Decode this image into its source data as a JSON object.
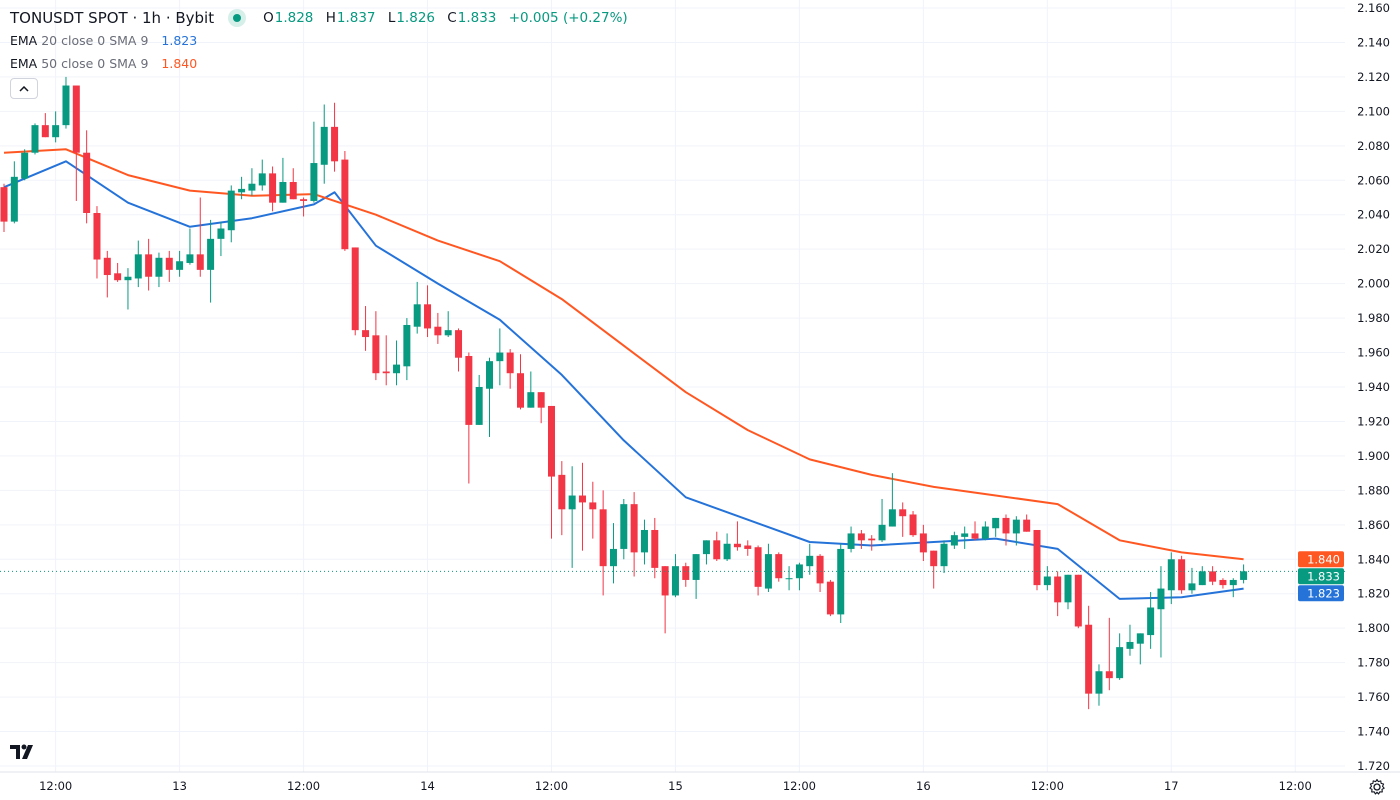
{
  "header": {
    "title": "TONUSDT SPOT · 1h · Bybit",
    "status": "market-open",
    "open_label": "O",
    "open": "1.828",
    "high_label": "H",
    "high": "1.837",
    "low_label": "L",
    "low": "1.826",
    "close_label": "C",
    "close": "1.833",
    "change": "+0.005 (+0.27%)"
  },
  "indicators": [
    {
      "name": "EMA",
      "params": "20 close 0 SMA 9",
      "value": "1.823",
      "color": "#2573d9"
    },
    {
      "name": "EMA",
      "params": "50 close 0 SMA 9",
      "value": "1.840",
      "color": "#ff5722"
    }
  ],
  "icons": {
    "collapse": "chevron-up-icon",
    "logo": "tradingview-logo",
    "settings": "gear-icon"
  },
  "colors": {
    "up": "#089981",
    "down": "#f23645",
    "grid": "#f0f3fa"
  },
  "chart_data": {
    "type": "candlestick",
    "symbol": "TONUSDT SPOT",
    "interval": "1h",
    "start": "12 07:00",
    "ohlc": [
      [
        2.056,
        2.058,
        2.03,
        2.036
      ],
      [
        2.036,
        2.071,
        2.035,
        2.062
      ],
      [
        2.061,
        2.078,
        2.06,
        2.076
      ],
      [
        2.076,
        2.093,
        2.075,
        2.092
      ],
      [
        2.092,
        2.099,
        2.085,
        2.085
      ],
      [
        2.085,
        2.1,
        2.082,
        2.092
      ],
      [
        2.092,
        2.12,
        2.09,
        2.115
      ],
      [
        2.115,
        2.115,
        2.048,
        2.076
      ],
      [
        2.076,
        2.089,
        2.035,
        2.041
      ],
      [
        2.041,
        2.045,
        2.003,
        2.014
      ],
      [
        2.015,
        2.019,
        1.992,
        2.005
      ],
      [
        2.006,
        2.012,
        2.001,
        2.002
      ],
      [
        2.002,
        2.009,
        1.985,
        2.004
      ],
      [
        2.003,
        2.025,
        1.998,
        2.017
      ],
      [
        2.017,
        2.026,
        1.996,
        2.004
      ],
      [
        2.004,
        2.018,
        1.998,
        2.015
      ],
      [
        2.015,
        2.019,
        2.001,
        2.008
      ],
      [
        2.008,
        2.019,
        2.004,
        2.013
      ],
      [
        2.012,
        2.032,
        2.011,
        2.017
      ],
      [
        2.017,
        2.05,
        2.004,
        2.008
      ],
      [
        2.008,
        2.037,
        1.989,
        2.026
      ],
      [
        2.026,
        2.036,
        2.016,
        2.032
      ],
      [
        2.031,
        2.057,
        2.024,
        2.054
      ],
      [
        2.053,
        2.062,
        2.049,
        2.055
      ],
      [
        2.054,
        2.067,
        2.051,
        2.058
      ],
      [
        2.057,
        2.072,
        2.054,
        2.064
      ],
      [
        2.064,
        2.068,
        2.042,
        2.047
      ],
      [
        2.047,
        2.073,
        2.047,
        2.059
      ],
      [
        2.059,
        2.067,
        2.049,
        2.049
      ],
      [
        2.049,
        2.05,
        2.039,
        2.048
      ],
      [
        2.048,
        2.094,
        2.047,
        2.07
      ],
      [
        2.069,
        2.104,
        2.058,
        2.091
      ],
      [
        2.091,
        2.105,
        2.065,
        2.071
      ],
      [
        2.072,
        2.077,
        2.019,
        2.02
      ],
      [
        2.021,
        2.021,
        1.97,
        1.973
      ],
      [
        1.973,
        1.987,
        1.961,
        1.969
      ],
      [
        1.97,
        1.984,
        1.944,
        1.948
      ],
      [
        1.949,
        1.97,
        1.941,
        1.948
      ],
      [
        1.948,
        1.967,
        1.941,
        1.953
      ],
      [
        1.952,
        1.98,
        1.944,
        1.976
      ],
      [
        1.975,
        2.001,
        1.971,
        1.988
      ],
      [
        1.988,
        1.999,
        1.969,
        1.974
      ],
      [
        1.975,
        1.983,
        1.965,
        1.97
      ],
      [
        1.97,
        1.984,
        1.969,
        1.973
      ],
      [
        1.973,
        1.974,
        1.949,
        1.957
      ],
      [
        1.958,
        1.96,
        1.884,
        1.918
      ],
      [
        1.918,
        1.947,
        1.918,
        1.94
      ],
      [
        1.939,
        1.957,
        1.911,
        1.955
      ],
      [
        1.955,
        1.974,
        1.941,
        1.96
      ],
      [
        1.96,
        1.962,
        1.939,
        1.948
      ],
      [
        1.948,
        1.959,
        1.927,
        1.928
      ],
      [
        1.928,
        1.949,
        1.928,
        1.937
      ],
      [
        1.937,
        1.937,
        1.919,
        1.928
      ],
      [
        1.929,
        1.929,
        1.852,
        1.888
      ],
      [
        1.889,
        1.897,
        1.854,
        1.869
      ],
      [
        1.869,
        1.894,
        1.835,
        1.877
      ],
      [
        1.877,
        1.896,
        1.845,
        1.873
      ],
      [
        1.873,
        1.885,
        1.852,
        1.869
      ],
      [
        1.869,
        1.88,
        1.819,
        1.836
      ],
      [
        1.836,
        1.861,
        1.826,
        1.846
      ],
      [
        1.846,
        1.875,
        1.84,
        1.872
      ],
      [
        1.872,
        1.879,
        1.83,
        1.844
      ],
      [
        1.844,
        1.863,
        1.837,
        1.857
      ],
      [
        1.857,
        1.864,
        1.829,
        1.835
      ],
      [
        1.836,
        1.836,
        1.797,
        1.819
      ],
      [
        1.819,
        1.843,
        1.818,
        1.836
      ],
      [
        1.836,
        1.838,
        1.824,
        1.828
      ],
      [
        1.828,
        1.843,
        1.817,
        1.843
      ],
      [
        1.843,
        1.851,
        1.837,
        1.851
      ],
      [
        1.851,
        1.856,
        1.839,
        1.84
      ],
      [
        1.84,
        1.855,
        1.839,
        1.849
      ],
      [
        1.849,
        1.862,
        1.845,
        1.847
      ],
      [
        1.848,
        1.851,
        1.842,
        1.846
      ],
      [
        1.847,
        1.848,
        1.819,
        1.824
      ],
      [
        1.823,
        1.849,
        1.821,
        1.843
      ],
      [
        1.843,
        1.844,
        1.827,
        1.829
      ],
      [
        1.829,
        1.836,
        1.822,
        1.829
      ],
      [
        1.829,
        1.838,
        1.822,
        1.837
      ],
      [
        1.836,
        1.849,
        1.831,
        1.842
      ],
      [
        1.842,
        1.843,
        1.821,
        1.826
      ],
      [
        1.827,
        1.828,
        1.807,
        1.808
      ],
      [
        1.808,
        1.849,
        1.803,
        1.846
      ],
      [
        1.846,
        1.859,
        1.844,
        1.855
      ],
      [
        1.855,
        1.857,
        1.846,
        1.851
      ],
      [
        1.852,
        1.854,
        1.845,
        1.851
      ],
      [
        1.851,
        1.875,
        1.85,
        1.86
      ],
      [
        1.859,
        1.89,
        1.859,
        1.869
      ],
      [
        1.869,
        1.873,
        1.853,
        1.865
      ],
      [
        1.866,
        1.868,
        1.853,
        1.854
      ],
      [
        1.855,
        1.86,
        1.839,
        1.844
      ],
      [
        1.845,
        1.845,
        1.823,
        1.836
      ],
      [
        1.836,
        1.851,
        1.832,
        1.849
      ],
      [
        1.848,
        1.856,
        1.846,
        1.854
      ],
      [
        1.853,
        1.859,
        1.846,
        1.855
      ],
      [
        1.855,
        1.862,
        1.851,
        1.852
      ],
      [
        1.852,
        1.862,
        1.851,
        1.859
      ],
      [
        1.858,
        1.864,
        1.853,
        1.864
      ],
      [
        1.864,
        1.866,
        1.848,
        1.855
      ],
      [
        1.855,
        1.865,
        1.848,
        1.863
      ],
      [
        1.863,
        1.866,
        1.856,
        1.856
      ],
      [
        1.857,
        1.857,
        1.822,
        1.825
      ],
      [
        1.825,
        1.836,
        1.822,
        1.83
      ],
      [
        1.83,
        1.833,
        1.807,
        1.815
      ],
      [
        1.815,
        1.831,
        1.811,
        1.831
      ],
      [
        1.831,
        1.831,
        1.8,
        1.801
      ],
      [
        1.802,
        1.813,
        1.753,
        1.762
      ],
      [
        1.762,
        1.779,
        1.755,
        1.775
      ],
      [
        1.775,
        1.806,
        1.764,
        1.771
      ],
      [
        1.771,
        1.797,
        1.77,
        1.789
      ],
      [
        1.788,
        1.802,
        1.784,
        1.792
      ],
      [
        1.791,
        1.797,
        1.779,
        1.797
      ],
      [
        1.796,
        1.821,
        1.788,
        1.812
      ],
      [
        1.811,
        1.836,
        1.783,
        1.823
      ],
      [
        1.822,
        1.844,
        1.814,
        1.84
      ],
      [
        1.84,
        1.842,
        1.82,
        1.822
      ],
      [
        1.822,
        1.835,
        1.82,
        1.826
      ],
      [
        1.825,
        1.836,
        1.825,
        1.833
      ],
      [
        1.833,
        1.836,
        1.825,
        1.827
      ],
      [
        1.828,
        1.829,
        1.823,
        1.825
      ],
      [
        1.825,
        1.829,
        1.818,
        1.828
      ],
      [
        1.828,
        1.837,
        1.826,
        1.833
      ]
    ],
    "series": [
      {
        "name": "EMA 20",
        "color": "#2573d9",
        "points": [
          [
            "12 07:00",
            2.056
          ],
          [
            "12 13:00",
            2.071
          ],
          [
            "12 19:00",
            2.047
          ],
          [
            "13 01:00",
            2.033
          ],
          [
            "13 07:00",
            2.038
          ],
          [
            "13 13:00",
            2.046
          ],
          [
            "13 15:00",
            2.053
          ],
          [
            "13 19:00",
            2.022
          ],
          [
            "14 01:00",
            2.0
          ],
          [
            "14 07:00",
            1.979
          ],
          [
            "14 13:00",
            1.947
          ],
          [
            "14 19:00",
            1.909
          ],
          [
            "15 01:00",
            1.876
          ],
          [
            "15 07:00",
            1.863
          ],
          [
            "15 13:00",
            1.85
          ],
          [
            "15 19:00",
            1.848
          ],
          [
            "16 01:00",
            1.85
          ],
          [
            "16 07:00",
            1.852
          ],
          [
            "16 13:00",
            1.846
          ],
          [
            "16 19:00",
            1.817
          ],
          [
            "17 01:00",
            1.818
          ],
          [
            "17 07:00",
            1.823
          ]
        ]
      },
      {
        "name": "EMA 50",
        "color": "#ff5722",
        "points": [
          [
            "12 07:00",
            2.076
          ],
          [
            "12 13:00",
            2.078
          ],
          [
            "12 19:00",
            2.063
          ],
          [
            "13 01:00",
            2.054
          ],
          [
            "13 07:00",
            2.051
          ],
          [
            "13 13:00",
            2.052
          ],
          [
            "13 19:00",
            2.04
          ],
          [
            "14 01:00",
            2.025
          ],
          [
            "14 07:00",
            2.013
          ],
          [
            "14 13:00",
            1.991
          ],
          [
            "14 19:00",
            1.964
          ],
          [
            "15 01:00",
            1.937
          ],
          [
            "15 07:00",
            1.915
          ],
          [
            "15 13:00",
            1.898
          ],
          [
            "15 19:00",
            1.889
          ],
          [
            "16 01:00",
            1.882
          ],
          [
            "16 07:00",
            1.877
          ],
          [
            "16 13:00",
            1.872
          ],
          [
            "16 19:00",
            1.851
          ],
          [
            "17 01:00",
            1.844
          ],
          [
            "17 07:00",
            1.84
          ]
        ]
      }
    ],
    "last_price": 1.833,
    "price_labels": [
      {
        "value": "1.840",
        "color": "#ff5722"
      },
      {
        "value": "1.833",
        "color": "#089981"
      },
      {
        "value": "1.823",
        "color": "#2573d9"
      }
    ],
    "ylim": [
      1.72,
      2.16
    ],
    "y_ticks": [
      "2.160",
      "2.140",
      "2.120",
      "2.100",
      "2.080",
      "2.060",
      "2.040",
      "2.020",
      "2.000",
      "1.980",
      "1.960",
      "1.940",
      "1.920",
      "1.900",
      "1.880",
      "1.860",
      "1.840",
      "1.820",
      "1.800",
      "1.780",
      "1.760",
      "1.740",
      "1.720"
    ],
    "x_ticks": [
      {
        "label": "12:00",
        "time": "12 12:00"
      },
      {
        "label": "13",
        "time": "13 00:00"
      },
      {
        "label": "12:00",
        "time": "13 12:00"
      },
      {
        "label": "14",
        "time": "14 00:00"
      },
      {
        "label": "12:00",
        "time": "14 12:00"
      },
      {
        "label": "15",
        "time": "15 00:00"
      },
      {
        "label": "12:00",
        "time": "15 12:00"
      },
      {
        "label": "16",
        "time": "16 00:00"
      },
      {
        "label": "12:00",
        "time": "16 12:00"
      },
      {
        "label": "17",
        "time": "17 00:00"
      },
      {
        "label": "12:00",
        "time": "17 12:00"
      }
    ],
    "grid": true
  }
}
